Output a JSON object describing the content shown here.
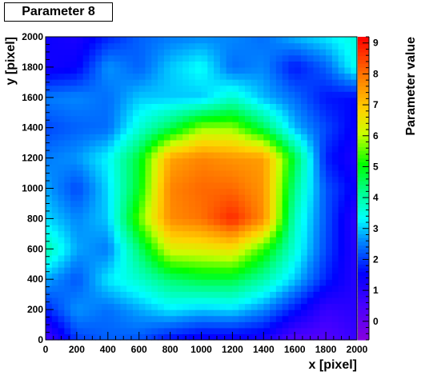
{
  "chart_data": {
    "type": "heatmap",
    "title": "Parameter 8",
    "xlabel": "x [pixel]",
    "ylabel": "y [pixel]",
    "zlabel": "Parameter value",
    "xlim": [
      0,
      2000
    ],
    "ylim": [
      0,
      2000
    ],
    "zlim": [
      -0.6,
      9.2
    ],
    "x_ticks": [
      0,
      200,
      400,
      600,
      800,
      1000,
      1200,
      1400,
      1600,
      1800,
      2000
    ],
    "y_ticks": [
      0,
      200,
      400,
      600,
      800,
      1000,
      1200,
      1400,
      1600,
      1800,
      2000
    ],
    "z_ticks": [
      0,
      1,
      2,
      3,
      4,
      5,
      6,
      7,
      8,
      9
    ],
    "colormap": "rainbow (violet-blue-cyan-green-yellow-orange-red)",
    "grid": false,
    "legend": "colorbar-right",
    "peak": {
      "x": 1150,
      "y": 900,
      "value": 9.0
    },
    "z_grid_note": "values sampled every 200 px in x (columns) and y (rows, y=0 first)",
    "x": [
      0,
      200,
      400,
      600,
      800,
      1000,
      1200,
      1400,
      1600,
      1800,
      2000
    ],
    "y": [
      0,
      200,
      400,
      600,
      800,
      1000,
      1200,
      1400,
      1600,
      1800,
      2000
    ],
    "z": [
      [
        0.5,
        2.0,
        2.3,
        2.2,
        1.6,
        1.3,
        1.3,
        1.2,
        0.3,
        0.3,
        0.8
      ],
      [
        1.8,
        2.7,
        2.4,
        2.8,
        3.2,
        3.0,
        3.1,
        2.6,
        1.7,
        0.8,
        1.0
      ],
      [
        2.8,
        2.2,
        3.2,
        3.7,
        4.4,
        4.7,
        4.7,
        4.0,
        3.0,
        1.8,
        1.0
      ],
      [
        4.0,
        2.8,
        2.5,
        4.4,
        6.3,
        6.4,
        6.6,
        5.3,
        3.6,
        2.1,
        1.0
      ],
      [
        3.1,
        2.6,
        3.0,
        5.5,
        7.7,
        8.0,
        8.8,
        7.7,
        3.8,
        2.2,
        0.9
      ],
      [
        2.8,
        2.1,
        3.1,
        4.9,
        7.8,
        8.1,
        8.1,
        7.6,
        4.2,
        2.2,
        1.4
      ],
      [
        2.5,
        2.7,
        3.3,
        4.8,
        7.4,
        7.8,
        7.6,
        7.5,
        4.7,
        1.8,
        1.1
      ],
      [
        2.1,
        2.3,
        2.4,
        3.6,
        4.6,
        5.8,
        5.8,
        4.6,
        2.9,
        2.1,
        1.4
      ],
      [
        2.5,
        2.6,
        2.4,
        3.0,
        3.0,
        3.0,
        3.7,
        2.9,
        2.4,
        1.7,
        1.6
      ],
      [
        1.3,
        1.5,
        2.7,
        2.3,
        3.0,
        3.4,
        2.4,
        2.6,
        1.7,
        2.3,
        3.5
      ],
      [
        1.4,
        1.2,
        1.8,
        2.3,
        2.5,
        2.6,
        2.6,
        2.4,
        2.9,
        3.2,
        3.6
      ]
    ]
  }
}
